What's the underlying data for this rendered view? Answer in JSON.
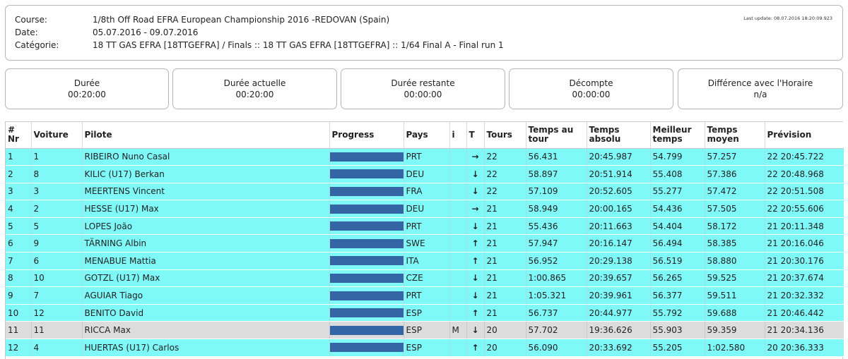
{
  "info": {
    "course_label": "Course:",
    "course_value": "1/8th Off Road EFRA European Championship 2016 -REDOVAN (Spain)",
    "date_label": "Date:",
    "date_value": "05.07.2016 - 09.07.2016",
    "category_label": "Catégorie:",
    "category_value": "18 TT GAS EFRA [18TTGEFRA] / Finals :: 18 TT GAS EFRA [18TTGEFRA] :: 1/64 Final A - Final run 1",
    "last_update": "Last update: 08.07.2016 18:20:09.923"
  },
  "timers": [
    {
      "label": "Durée",
      "value": "00:20:00"
    },
    {
      "label": "Durée actuelle",
      "value": "00:20:00"
    },
    {
      "label": "Durée restante",
      "value": "00:00:00"
    },
    {
      "label": "Décompte",
      "value": "00:00:00"
    },
    {
      "label": "Différence avec l'Horaire",
      "value": "n/a"
    }
  ],
  "table": {
    "headers": {
      "nr": "# Nr",
      "voiture": "Voiture",
      "pilote": "Pilote",
      "progress": "Progress",
      "pays": "Pays",
      "i": "i",
      "t": "T",
      "tours": "Tours",
      "temps_tour": "Temps au tour",
      "temps_absolu": "Temps absolu",
      "meilleur": "Meilleur temps",
      "moyen": "Temps moyen",
      "prevision": "Prévision"
    },
    "rows": [
      {
        "nr": "1",
        "voiture": "1",
        "pilote": "RIBEIRO Nuno Casal",
        "progress": 1.0,
        "pays": "PRT",
        "i": "",
        "trend": "→",
        "tours": "22",
        "temps_tour": "56.431",
        "temps_absolu": "20:45.987",
        "meilleur": "54.799",
        "moyen": "57.257",
        "prevision": "22 20:45.722",
        "status": "cyan"
      },
      {
        "nr": "2",
        "voiture": "8",
        "pilote": "KILIC (U17) Berkan",
        "progress": 1.0,
        "pays": "DEU",
        "i": "",
        "trend": "↓",
        "tours": "22",
        "temps_tour": "58.897",
        "temps_absolu": "20:51.914",
        "meilleur": "55.408",
        "moyen": "57.386",
        "prevision": "22 20:48.968",
        "status": "cyan"
      },
      {
        "nr": "3",
        "voiture": "3",
        "pilote": "MEERTENS Vincent",
        "progress": 1.0,
        "pays": "FRA",
        "i": "",
        "trend": "↓",
        "tours": "22",
        "temps_tour": "57.109",
        "temps_absolu": "20:52.605",
        "meilleur": "55.277",
        "moyen": "57.472",
        "prevision": "22 20:51.508",
        "status": "cyan"
      },
      {
        "nr": "4",
        "voiture": "2",
        "pilote": "HESSE (U17) Max",
        "progress": 1.0,
        "pays": "DEU",
        "i": "",
        "trend": "→",
        "tours": "21",
        "temps_tour": "58.949",
        "temps_absolu": "20:00.165",
        "meilleur": "54.436",
        "moyen": "57.505",
        "prevision": "22 20:55.606",
        "status": "cyan"
      },
      {
        "nr": "5",
        "voiture": "5",
        "pilote": "LOPES João",
        "progress": 1.0,
        "pays": "PRT",
        "i": "",
        "trend": "↓",
        "tours": "21",
        "temps_tour": "55.436",
        "temps_absolu": "20:11.663",
        "meilleur": "54.404",
        "moyen": "58.172",
        "prevision": "21 20:11.348",
        "status": "cyan"
      },
      {
        "nr": "6",
        "voiture": "9",
        "pilote": "TÄRNING Albin",
        "progress": 1.0,
        "pays": "SWE",
        "i": "",
        "trend": "↑",
        "tours": "21",
        "temps_tour": "57.947",
        "temps_absolu": "20:16.147",
        "meilleur": "56.494",
        "moyen": "58.385",
        "prevision": "21 20:16.046",
        "status": "cyan"
      },
      {
        "nr": "7",
        "voiture": "6",
        "pilote": "MENABUE Mattia",
        "progress": 1.0,
        "pays": "ITA",
        "i": "",
        "trend": "↑",
        "tours": "21",
        "temps_tour": "56.952",
        "temps_absolu": "20:29.138",
        "meilleur": "56.519",
        "moyen": "58.880",
        "prevision": "21 20:30.176",
        "status": "cyan"
      },
      {
        "nr": "8",
        "voiture": "10",
        "pilote": "GOTZL (U17) Max",
        "progress": 1.0,
        "pays": "CZE",
        "i": "",
        "trend": "↓",
        "tours": "21",
        "temps_tour": "1:00.865",
        "temps_absolu": "20:39.657",
        "meilleur": "56.265",
        "moyen": "59.525",
        "prevision": "21 20:37.674",
        "status": "cyan"
      },
      {
        "nr": "9",
        "voiture": "7",
        "pilote": "AGUIAR Tiago",
        "progress": 1.0,
        "pays": "PRT",
        "i": "",
        "trend": "↓",
        "tours": "21",
        "temps_tour": "1:05.321",
        "temps_absolu": "20:39.961",
        "meilleur": "56.377",
        "moyen": "59.511",
        "prevision": "21 20:32.332",
        "status": "cyan"
      },
      {
        "nr": "10",
        "voiture": "12",
        "pilote": "BENITO David",
        "progress": 1.0,
        "pays": "ESP",
        "i": "",
        "trend": "↑",
        "tours": "21",
        "temps_tour": "56.737",
        "temps_absolu": "20:44.977",
        "meilleur": "55.792",
        "moyen": "59.688",
        "prevision": "21 20:46.442",
        "status": "cyan"
      },
      {
        "nr": "11",
        "voiture": "11",
        "pilote": "RICCA Max",
        "progress": 1.0,
        "pays": "ESP",
        "i": "M",
        "trend": "↓",
        "tours": "20",
        "temps_tour": "57.702",
        "temps_absolu": "19:36.626",
        "meilleur": "55.903",
        "moyen": "59.359",
        "prevision": "21 20:34.136",
        "status": "grey"
      },
      {
        "nr": "12",
        "voiture": "4",
        "pilote": "HUERTAS (U17) Carlos",
        "progress": 1.0,
        "pays": "ESP",
        "i": "",
        "trend": "↑",
        "tours": "20",
        "temps_tour": "56.090",
        "temps_absolu": "20:33.692",
        "meilleur": "55.205",
        "moyen": "1:02.580",
        "prevision": "20 20:36.333",
        "status": "cyan"
      }
    ]
  },
  "colors": {
    "row_normal": "#7ff8f8",
    "row_mechanical": "#dcdcdc",
    "progress_bar": "#3465a4"
  }
}
